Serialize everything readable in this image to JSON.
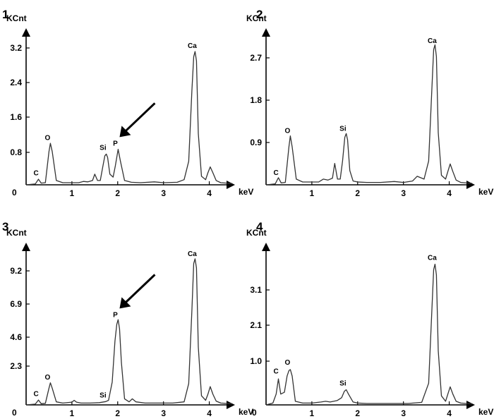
{
  "chart_data": [
    {
      "type": "line",
      "panel_label": "1",
      "ylabel": "KCnt",
      "xlabel": "keV",
      "y_ticks": [
        "0.8",
        "1.6",
        "2.4",
        "3.2"
      ],
      "y_zero_label": "0",
      "x_ticks": [
        "1",
        "2",
        "3",
        "4"
      ],
      "xlim": [
        0,
        4.5
      ],
      "ylim": [
        0,
        3.5
      ],
      "arrow_target": "P",
      "peaks": [
        {
          "label": "C",
          "x": 0.28,
          "y": 0.12
        },
        {
          "label": "O",
          "x": 0.53,
          "y": 0.95
        },
        {
          "label": "Si",
          "x": 1.74,
          "y": 0.72
        },
        {
          "label": "P",
          "x": 2.01,
          "y": 0.82
        },
        {
          "label": "Ca",
          "x": 3.69,
          "y": 3.1
        }
      ],
      "spectrum": {
        "x": [
          0.0,
          0.2,
          0.27,
          0.33,
          0.42,
          0.5,
          0.53,
          0.57,
          0.66,
          0.8,
          1.0,
          1.15,
          1.25,
          1.35,
          1.45,
          1.5,
          1.56,
          1.62,
          1.67,
          1.72,
          1.75,
          1.78,
          1.83,
          1.9,
          1.95,
          2.01,
          2.06,
          2.15,
          2.3,
          2.5,
          2.8,
          3.0,
          3.3,
          3.45,
          3.55,
          3.62,
          3.66,
          3.69,
          3.72,
          3.76,
          3.83,
          3.92,
          3.97,
          4.02,
          4.08,
          4.15,
          4.25,
          4.5
        ],
        "y": [
          0.0,
          0.02,
          0.13,
          0.04,
          0.05,
          0.78,
          0.97,
          0.78,
          0.1,
          0.05,
          0.05,
          0.05,
          0.08,
          0.07,
          0.1,
          0.25,
          0.1,
          0.1,
          0.4,
          0.68,
          0.72,
          0.64,
          0.25,
          0.18,
          0.45,
          0.83,
          0.55,
          0.1,
          0.06,
          0.05,
          0.07,
          0.05,
          0.06,
          0.12,
          0.55,
          2.2,
          3.0,
          3.12,
          2.9,
          1.2,
          0.2,
          0.12,
          0.28,
          0.42,
          0.28,
          0.1,
          0.05,
          0.03
        ]
      }
    },
    {
      "type": "line",
      "panel_label": "2",
      "ylabel": "KCnt",
      "xlabel": "keV",
      "y_ticks": [
        "0.9",
        "1.8",
        "2.7"
      ],
      "y_zero_label": "",
      "x_ticks": [
        "1",
        "2",
        "3",
        "4"
      ],
      "xlim": [
        0,
        4.5
      ],
      "ylim": [
        0,
        3.15
      ],
      "arrow_target": "",
      "peaks": [
        {
          "label": "C",
          "x": 0.28,
          "y": 0.12
        },
        {
          "label": "O",
          "x": 0.53,
          "y": 1.0
        },
        {
          "label": "Si",
          "x": 1.74,
          "y": 1.05
        },
        {
          "label": "Ca",
          "x": 3.69,
          "y": 2.9
        }
      ],
      "spectrum": {
        "x": [
          0.0,
          0.2,
          0.27,
          0.33,
          0.42,
          0.5,
          0.53,
          0.57,
          0.66,
          0.8,
          1.0,
          1.15,
          1.25,
          1.35,
          1.45,
          1.5,
          1.56,
          1.62,
          1.67,
          1.72,
          1.75,
          1.78,
          1.83,
          1.9,
          2.0,
          2.2,
          2.5,
          2.8,
          3.0,
          3.2,
          3.3,
          3.45,
          3.55,
          3.62,
          3.66,
          3.69,
          3.72,
          3.76,
          3.83,
          3.92,
          3.97,
          4.02,
          4.08,
          4.15,
          4.25,
          4.5
        ],
        "y": [
          0.0,
          0.02,
          0.15,
          0.04,
          0.05,
          0.8,
          1.03,
          0.8,
          0.12,
          0.06,
          0.06,
          0.06,
          0.12,
          0.1,
          0.14,
          0.45,
          0.12,
          0.12,
          0.5,
          1.0,
          1.08,
          0.95,
          0.3,
          0.08,
          0.06,
          0.05,
          0.05,
          0.07,
          0.05,
          0.08,
          0.18,
          0.12,
          0.5,
          2.0,
          2.85,
          2.95,
          2.7,
          1.1,
          0.2,
          0.12,
          0.28,
          0.44,
          0.28,
          0.1,
          0.05,
          0.03
        ]
      }
    },
    {
      "type": "line",
      "panel_label": "3",
      "ylabel": "KCnt",
      "xlabel": "keV",
      "y_ticks": [
        "2.3",
        "4.6",
        "6.9",
        "9.2"
      ],
      "y_zero_label": "0",
      "x_ticks": [
        "1",
        "2",
        "3",
        "4"
      ],
      "xlim": [
        0,
        4.5
      ],
      "ylim": [
        0,
        10.2
      ],
      "arrow_target": "P",
      "peaks": [
        {
          "label": "C",
          "x": 0.28,
          "y": 0.3
        },
        {
          "label": "O",
          "x": 0.53,
          "y": 1.4
        },
        {
          "label": "Si",
          "x": 1.74,
          "y": 0.2
        },
        {
          "label": "P",
          "x": 2.01,
          "y": 5.5
        },
        {
          "label": "Ca",
          "x": 3.69,
          "y": 9.5
        }
      ],
      "spectrum": {
        "x": [
          0.0,
          0.2,
          0.27,
          0.33,
          0.42,
          0.5,
          0.53,
          0.57,
          0.66,
          0.8,
          1.0,
          1.05,
          1.1,
          1.2,
          1.4,
          1.6,
          1.74,
          1.8,
          1.88,
          1.94,
          1.98,
          2.01,
          2.04,
          2.08,
          2.15,
          2.25,
          2.32,
          2.4,
          2.6,
          2.9,
          3.2,
          3.45,
          3.55,
          3.62,
          3.66,
          3.69,
          3.72,
          3.76,
          3.83,
          3.92,
          3.97,
          4.02,
          4.08,
          4.15,
          4.25,
          4.5
        ],
        "y": [
          0.0,
          0.05,
          0.32,
          0.08,
          0.1,
          1.1,
          1.45,
          1.1,
          0.2,
          0.12,
          0.18,
          0.3,
          0.18,
          0.12,
          0.12,
          0.15,
          0.22,
          0.3,
          1.5,
          4.2,
          5.3,
          5.6,
          5.0,
          2.8,
          0.4,
          0.2,
          0.4,
          0.2,
          0.12,
          0.12,
          0.12,
          0.2,
          1.4,
          6.2,
          9.3,
          9.6,
          9.0,
          3.8,
          0.6,
          0.3,
          0.7,
          1.2,
          0.7,
          0.25,
          0.12,
          0.08
        ]
      }
    },
    {
      "type": "line",
      "panel_label": "4",
      "ylabel": "KCnt",
      "xlabel": "keV",
      "y_ticks": [
        "1.0",
        "2.1",
        "3.1"
      ],
      "y_zero_label": "0",
      "x_ticks": [
        "1",
        "2",
        "3",
        "4"
      ],
      "xlim": [
        0,
        4.5
      ],
      "ylim": [
        0,
        4.3
      ],
      "arrow_target": "",
      "peaks": [
        {
          "label": "C",
          "x": 0.28,
          "y": 0.75
        },
        {
          "label": "O",
          "x": 0.53,
          "y": 1.0
        },
        {
          "label": "Si",
          "x": 1.74,
          "y": 0.42
        },
        {
          "label": "Ca",
          "x": 3.69,
          "y": 3.9
        }
      ],
      "spectrum": {
        "x": [
          0.0,
          0.15,
          0.22,
          0.27,
          0.32,
          0.4,
          0.46,
          0.5,
          0.53,
          0.57,
          0.64,
          0.8,
          1.0,
          1.2,
          1.3,
          1.4,
          1.55,
          1.65,
          1.71,
          1.75,
          1.8,
          1.9,
          2.0,
          2.2,
          2.5,
          2.8,
          3.1,
          3.4,
          3.55,
          3.62,
          3.66,
          3.69,
          3.72,
          3.76,
          3.83,
          3.92,
          3.97,
          4.02,
          4.08,
          4.15,
          4.25,
          4.5
        ],
        "y": [
          0.0,
          0.05,
          0.3,
          0.72,
          0.3,
          0.35,
          0.8,
          0.95,
          0.98,
          0.8,
          0.1,
          0.05,
          0.05,
          0.08,
          0.1,
          0.08,
          0.12,
          0.2,
          0.38,
          0.42,
          0.3,
          0.08,
          0.05,
          0.04,
          0.04,
          0.04,
          0.04,
          0.07,
          0.6,
          2.6,
          3.75,
          3.9,
          3.6,
          1.5,
          0.25,
          0.1,
          0.3,
          0.5,
          0.3,
          0.1,
          0.05,
          0.03
        ]
      }
    }
  ]
}
